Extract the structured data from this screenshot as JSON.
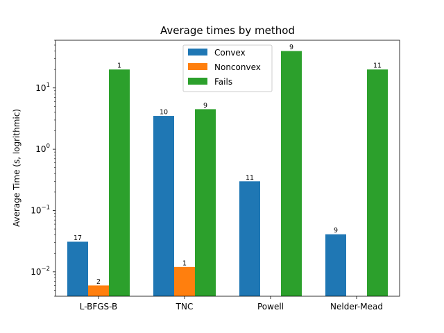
{
  "chart_data": {
    "type": "bar",
    "title": "Average times by method",
    "xlabel": "",
    "ylabel": "Average Time (s, logrithmic)",
    "yscale": "log",
    "ylim": [
      0.004,
      60
    ],
    "yticks": [
      {
        "value": 0.01,
        "base": "10",
        "exp": "−2"
      },
      {
        "value": 0.1,
        "base": "10",
        "exp": "−1"
      },
      {
        "value": 1,
        "base": "10",
        "exp": "0"
      },
      {
        "value": 10,
        "base": "10",
        "exp": "1"
      }
    ],
    "categories": [
      "L-BFGS-B",
      "TNC",
      "Powell",
      "Nelder-Mead"
    ],
    "series": [
      {
        "name": "Convex",
        "color": "#1f77b4",
        "values": [
          0.031,
          3.5,
          0.3,
          0.041
        ],
        "labels": [
          "17",
          "10",
          "11",
          "9"
        ]
      },
      {
        "name": "Nonconvex",
        "color": "#ff7f0e",
        "values": [
          0.006,
          0.012,
          null,
          null
        ],
        "labels": [
          "2",
          "1",
          "",
          ""
        ]
      },
      {
        "name": "Fails",
        "color": "#2ca02c",
        "values": [
          20,
          4.5,
          40,
          20
        ],
        "labels": [
          "1",
          "9",
          "9",
          "11"
        ]
      }
    ],
    "legend": {
      "placement": "top-center"
    },
    "grid": false
  }
}
